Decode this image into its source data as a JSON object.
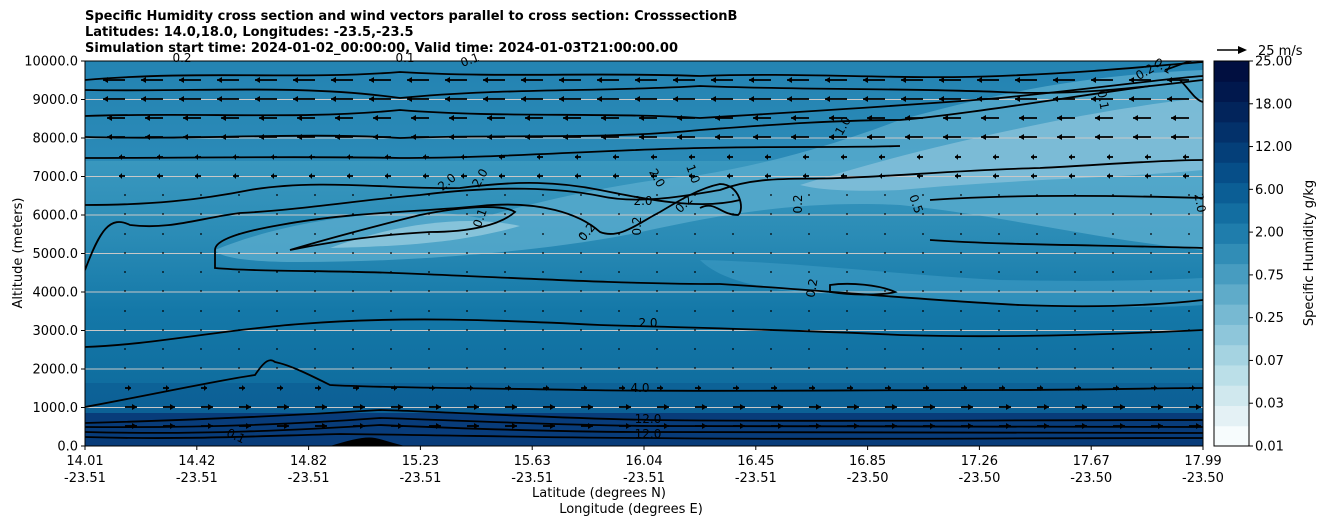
{
  "chart_data": {
    "type": "contour",
    "title_lines": [
      "Specific Humidity cross section and wind vectors parallel to cross section: CrosssectionB",
      "Latitudes: 14.0,18.0, Longitudes: -23.5,-23.5",
      "Simulation start time: 2024-01-02_00:00:00, Valid time: 2024-01-03T21:00:00.00"
    ],
    "ylabel": "Altitude (meters)",
    "xlabel_lat": "Latitude (degrees N)",
    "xlabel_lon": "Longitude (degrees E)",
    "ylim": [
      0,
      10000
    ],
    "yticks": [
      "0.0",
      "1000.0",
      "2000.0",
      "3000.0",
      "4000.0",
      "5000.0",
      "6000.0",
      "7000.0",
      "8000.0",
      "9000.0",
      "10000.0"
    ],
    "xticks_lat": [
      "14.01",
      "14.42",
      "14.82",
      "15.23",
      "15.63",
      "16.04",
      "16.45",
      "16.85",
      "17.26",
      "17.67",
      "17.99"
    ],
    "xticks_lon": [
      "-23.51",
      "-23.51",
      "-23.51",
      "-23.51",
      "-23.51",
      "-23.51",
      "-23.51",
      "-23.50",
      "-23.50",
      "-23.50",
      "-23.50"
    ],
    "colorbar": {
      "label": "Specific Humidity g/kg",
      "ticks": [
        "0.01",
        "0.03",
        "0.07",
        "0.25",
        "0.75",
        "2.00",
        "6.00",
        "12.00",
        "18.00",
        "25.00"
      ]
    },
    "quiver_key": "25 m/s",
    "contour_labels": [
      "0.2",
      "0.1",
      "0.1",
      "0.2",
      "0.1",
      "0.1",
      "1.0",
      "2.0",
      "2.0",
      "2.0",
      "1.0",
      "0.2",
      "0.1",
      "0.2",
      "0.2",
      "0.2",
      "0.5",
      "0.2",
      "2.0",
      "2.0",
      "2.0",
      "4.0",
      "12.0",
      "12.0",
      "0.1"
    ],
    "colors": {
      "grid": "#c8c8c8",
      "contour": "#000000"
    }
  }
}
